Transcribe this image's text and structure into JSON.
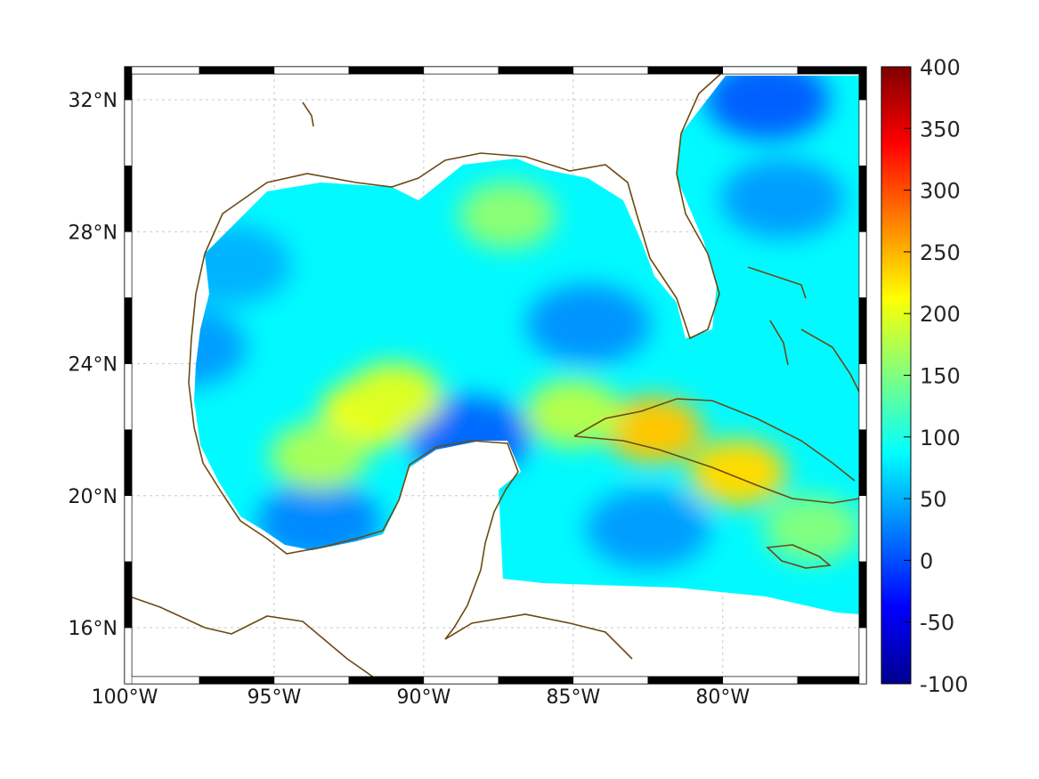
{
  "chart_data": {
    "type": "heatmap",
    "title": "",
    "xlabel": "",
    "ylabel": "",
    "x_ticks": [
      "100°W",
      "95°W",
      "90°W",
      "85°W",
      "80°W"
    ],
    "y_ticks": [
      "32°N",
      "28°N",
      "24°N",
      "20°N",
      "16°N"
    ],
    "xlim": [
      -100,
      -75.2
    ],
    "ylim": [
      14.3,
      33
    ],
    "colorbar": {
      "colormap": "jet",
      "range": [
        -100,
        400
      ],
      "ticks": [
        "400",
        "350",
        "300",
        "250",
        "200",
        "150",
        "100",
        "50",
        "0",
        "-50",
        "-100"
      ]
    },
    "highlights": [
      {
        "lon": -91.8,
        "lat": 22.5,
        "value": 210
      },
      {
        "lon": -82.3,
        "lat": 22.0,
        "value": 240
      },
      {
        "lon": -79.5,
        "lat": 20.7,
        "value": 230
      },
      {
        "lon": -91.0,
        "lat": 23.0,
        "value": 195
      },
      {
        "lon": -87.2,
        "lat": 28.5,
        "value": 155
      },
      {
        "lon": -85.0,
        "lat": 22.5,
        "value": 175
      },
      {
        "lon": -77.0,
        "lat": 19.0,
        "value": 150
      },
      {
        "lon": -93.5,
        "lat": 21.2,
        "value": 170
      }
    ],
    "lows": [
      {
        "lon": -88.5,
        "lat": 21.8,
        "value": 15
      },
      {
        "lon": -78.5,
        "lat": 32.0,
        "value": 10
      },
      {
        "lon": -93.5,
        "lat": 19.2,
        "value": 30
      },
      {
        "lon": -98.0,
        "lat": 24.5,
        "value": 40
      },
      {
        "lon": -84.5,
        "lat": 25.2,
        "value": 35
      },
      {
        "lon": -78.0,
        "lat": 29.0,
        "value": 40
      },
      {
        "lon": -96.5,
        "lat": 27.0,
        "value": 50
      },
      {
        "lon": -82.5,
        "lat": 19.0,
        "value": 40
      }
    ],
    "base_value": 85
  }
}
